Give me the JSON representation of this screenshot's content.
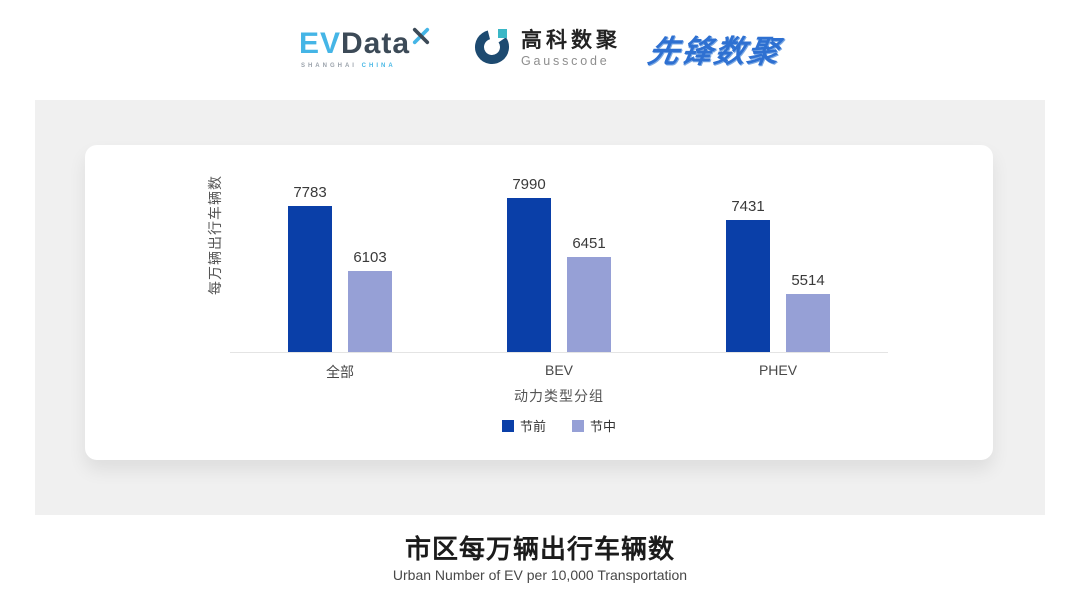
{
  "header": {
    "evdata": {
      "ev": "EV",
      "data": "Data",
      "sub_left": "SHANGHAI",
      "sub_right": "CHINA"
    },
    "gausscode": {
      "cn": "高科数聚",
      "en": "Gausscode"
    },
    "pioneer": "先锋数聚"
  },
  "chart_data": {
    "type": "bar",
    "title": "市区每万辆出行车辆数",
    "subtitle": "Urban Number of EV per 10,000 Transportation",
    "categories": [
      "全部",
      "BEV",
      "PHEV"
    ],
    "series": [
      {
        "name": "节前",
        "color": "#0a3fa8",
        "values": [
          7783,
          7990,
          7431
        ]
      },
      {
        "name": "节中",
        "color": "#96a0d6",
        "values": [
          6103,
          6451,
          5514
        ]
      }
    ],
    "ylabel": "每万辆出行车辆数",
    "xlabel": "动力类型分组",
    "ylim": [
      4000,
      8200
    ],
    "grid": false,
    "value_labels": true,
    "legend_position": "bottom"
  },
  "colors": {
    "accent_dark_blue": "#0a3fa8",
    "accent_periwinkle": "#96a0d6",
    "panel_gray": "#f0f0f0",
    "evdata_cyan": "#45b5e6",
    "evdata_navy": "#3c4a57",
    "gauss_navy": "#1d4a70",
    "gauss_teal": "#3ab7c6",
    "pioneer_blue": "#2e70d1"
  }
}
